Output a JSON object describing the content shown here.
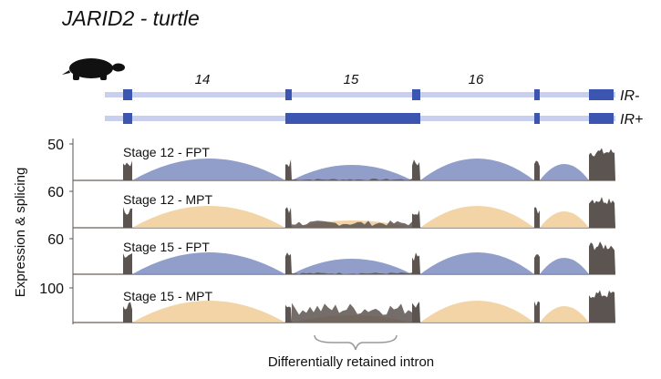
{
  "title": "JARID2 - turtle",
  "exon_labels": [
    "14",
    "15",
    "16"
  ],
  "transcripts": [
    "IR-",
    "IR+"
  ],
  "y_axis_label": "Expression & splicing",
  "tracks": [
    {
      "label": "Stage 12 - FPT",
      "max": "50",
      "color": "#8593c4"
    },
    {
      "label": "Stage 12 - MPT",
      "max": "60",
      "color": "#f2cf9c"
    },
    {
      "label": "Stage 15 - FPT",
      "max": "60",
      "color": "#8593c4"
    },
    {
      "label": "Stage 15 - MPT",
      "max": "100",
      "color": "#f2cf9c"
    }
  ],
  "annotation": "Differentially retained intron"
}
